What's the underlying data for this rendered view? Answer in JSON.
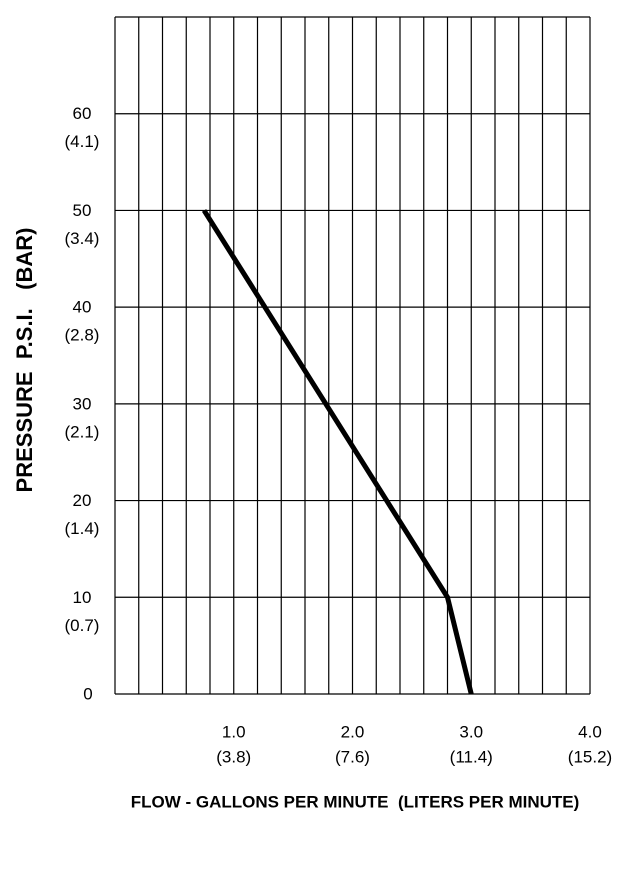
{
  "chart_data": {
    "type": "line",
    "xlabel": "FLOW - GALLONS PER MINUTE  (LITERS PER MINUTE)",
    "ylabel": "PRESSURE  P.S.I.   (BAR)",
    "x": [
      0.75,
      2.8,
      3.0
    ],
    "series": [
      {
        "color": "#000000",
        "values": [
          50,
          10,
          0
        ]
      }
    ],
    "xlim": [
      0,
      4
    ],
    "ylim": [
      0,
      70
    ],
    "xticks": [
      {
        "value": 1,
        "label": "1.0"
      },
      {
        "value": 2,
        "label": "2.0"
      },
      {
        "value": 3,
        "label": "3.0"
      },
      {
        "value": 4,
        "label": "4.0"
      }
    ],
    "x_secondary_labels": [
      "(3.8)",
      "(7.6)",
      "(11.4)",
      "(15.2)"
    ],
    "yticks": [
      0,
      10,
      20,
      30,
      40,
      50,
      60
    ],
    "y_secondary_labels": [
      null,
      "(0.7)",
      "(1.4)",
      "(2.1)",
      "(2.8)",
      "(3.4)",
      "(4.1)"
    ],
    "xgrid": [
      0,
      0.2,
      0.4,
      0.6,
      0.8,
      1,
      1.2,
      1.4,
      1.6,
      1.8,
      2,
      2.2,
      2.4,
      2.6,
      2.8,
      3,
      3.2,
      3.4,
      3.6,
      3.8,
      4
    ],
    "ygrid": [
      0,
      10,
      20,
      30,
      40,
      50,
      60,
      70
    ]
  }
}
